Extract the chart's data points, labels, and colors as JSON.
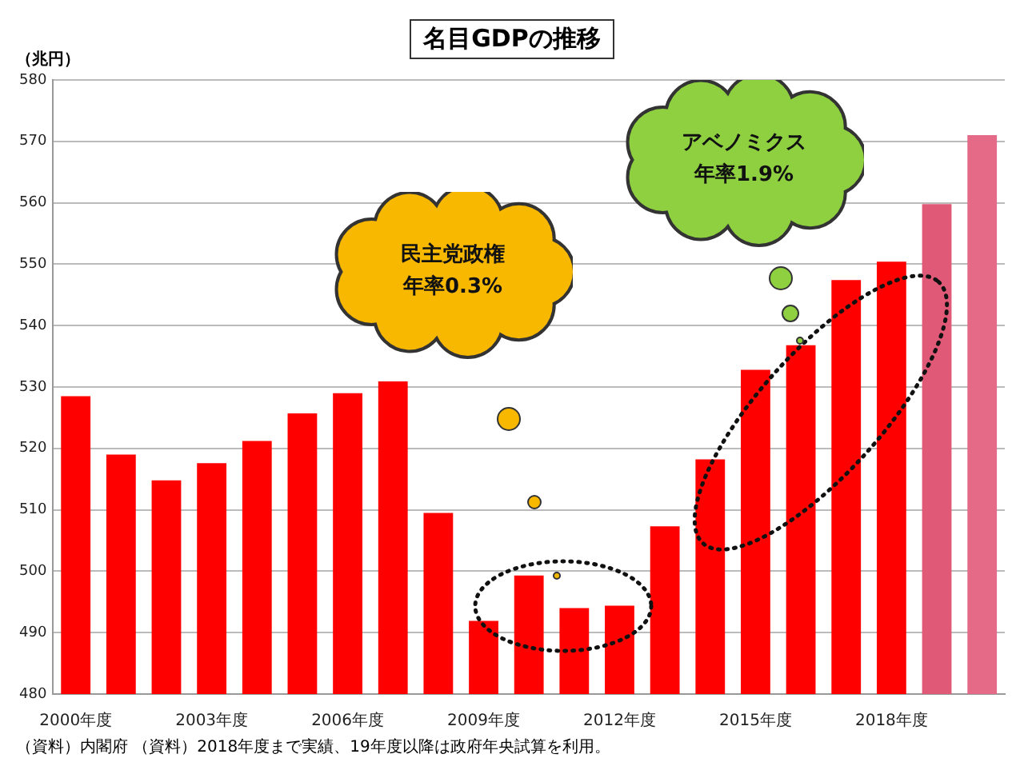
{
  "chart_data": {
    "type": "bar",
    "title": "名目GDPの推移",
    "ylabel": "（兆円）",
    "categories": [
      "2000年度",
      null,
      null,
      "2003年度",
      null,
      null,
      "2006年度",
      null,
      null,
      "2009年度",
      null,
      null,
      "2012年度",
      null,
      null,
      "2015年度",
      null,
      null,
      "2018年度",
      null,
      null
    ],
    "values": [
      528.5,
      519.0,
      514.8,
      517.6,
      521.2,
      525.7,
      529.0,
      530.9,
      509.5,
      491.9,
      499.3,
      494.0,
      494.4,
      507.3,
      518.2,
      532.8,
      536.8,
      547.4,
      550.4,
      559.8,
      571.0
    ],
    "colors": [
      "#ff0000",
      "#ff0000",
      "#ff0000",
      "#ff0000",
      "#ff0000",
      "#ff0000",
      "#ff0000",
      "#ff0000",
      "#ff0000",
      "#ff0000",
      "#ff0000",
      "#ff0000",
      "#ff0000",
      "#ff0000",
      "#ff0000",
      "#ff0000",
      "#ff0000",
      "#ff0000",
      "#ff0000",
      "#e05a78",
      "#e46a88"
    ],
    "ylim": [
      480,
      580
    ],
    "yticks": [
      480,
      490,
      500,
      510,
      520,
      530,
      540,
      550,
      560,
      570,
      580
    ],
    "grid": "y",
    "legend": false,
    "annotations": [
      "民主党政権",
      "年率0.3%",
      "アベノミクス",
      "年率1.9%",
      "（資料）内閣府 （資料）2018年度まで実績、19年度以降は政府年央試算を利用。"
    ]
  }
}
